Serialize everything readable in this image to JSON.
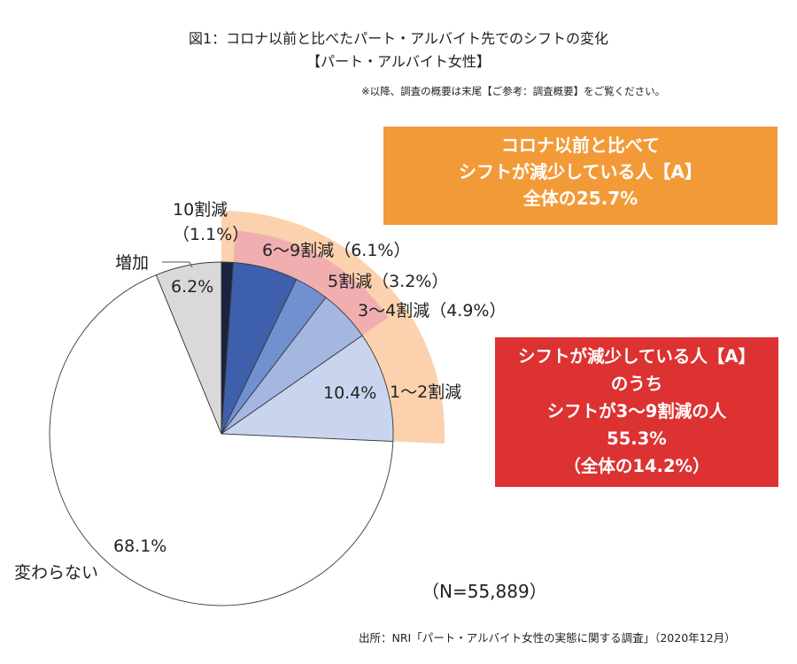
{
  "header": {
    "title_line1": "図1：コロナ以前と比べたパート・アルバイト先でのシフトの変化",
    "title_line2": "【パート・アルバイト女性】",
    "note": "※以降、調査の概要は末尾【ご参考：調査概要】をご覧ください。"
  },
  "callout_a": {
    "lines": [
      "コロナ以前と比べて",
      "シフトが減少している人【A】",
      "全体の25.7%"
    ],
    "color": "#f39a38"
  },
  "callout_b": {
    "lines": [
      "シフトが減少している人【A】",
      "のうち",
      "シフトが3〜9割減の人",
      "55.3%",
      "（全体の14.2%）"
    ],
    "color": "#dc3232"
  },
  "sample_size": "（N=55,889）",
  "source": "出所：NRI「パート・アルバイト女性の実態に関する調査」（2020年12月）",
  "chart_data": {
    "type": "pie",
    "start": "12 o'clock",
    "direction": "clockwise",
    "slices": [
      {
        "label": "10割減",
        "value": 1.1,
        "value_label": "（1.1%）",
        "color": "#1a2440"
      },
      {
        "label": "6〜9割減",
        "value": 6.1,
        "value_label": "（6.1%）",
        "color": "#3d5fac"
      },
      {
        "label": "5割減",
        "value": 3.2,
        "value_label": "（3.2%）",
        "color": "#7090d0"
      },
      {
        "label": "3〜4割減",
        "value": 4.9,
        "value_label": "（4.9%）",
        "color": "#a4b7e0"
      },
      {
        "label": "1〜2割減",
        "value": 10.4,
        "value_label": "10.4%",
        "color": "#c9d5ee"
      },
      {
        "label": "変わらない",
        "value": 68.1,
        "value_label": "68.1%",
        "color": "#ffffff"
      },
      {
        "label": "増加",
        "value": 6.2,
        "value_label": "6.2%",
        "color": "#d9d9d9"
      }
    ],
    "highlights": [
      {
        "group": "A",
        "slices": [
          "10割減",
          "6〜9割減",
          "5割減",
          "3〜4割減",
          "1〜2割減"
        ],
        "color": "#fbd2ad"
      },
      {
        "group": "3〜9割減",
        "slices": [
          "6〜9割減",
          "5割減",
          "3〜4割減"
        ],
        "color": "#f0aeb0"
      }
    ]
  }
}
